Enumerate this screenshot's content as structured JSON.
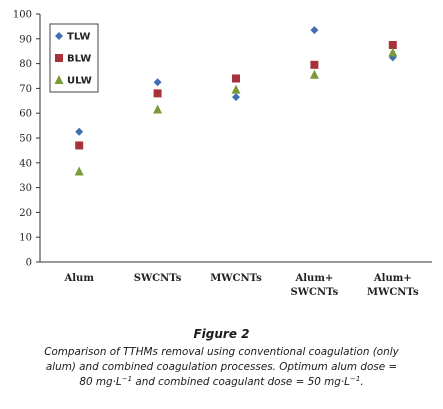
{
  "chart_data": {
    "type": "scatter",
    "title": "",
    "xlabel": "",
    "ylabel": "",
    "ylim": [
      0,
      100
    ],
    "yticks": [
      0,
      10,
      20,
      30,
      40,
      50,
      60,
      70,
      80,
      90,
      100
    ],
    "categories": [
      [
        "Alum"
      ],
      [
        "SWCNTs"
      ],
      [
        "MWCNTs"
      ],
      [
        "Alum+",
        "SWCNTs"
      ],
      [
        "Alum+",
        "MWCNTs"
      ]
    ],
    "series": [
      {
        "name": "TLW",
        "marker": "diamond",
        "color": "#3f6fb2",
        "values": [
          52.5,
          72.5,
          66.5,
          93.5,
          82.5
        ]
      },
      {
        "name": "BLW",
        "marker": "square",
        "color": "#a8323a",
        "values": [
          47,
          68,
          74,
          79.5,
          87.5
        ]
      },
      {
        "name": "ULW",
        "marker": "triangle",
        "color": "#7a9a3a",
        "values": [
          36.5,
          61.5,
          69.5,
          75.5,
          84.5
        ]
      }
    ],
    "legend": "top-left",
    "grid": false
  },
  "figure": {
    "title": "Figure 2",
    "caption_line1": "Comparison of TTHMs removal using conventional coagulation (only",
    "caption_line2": "alum) and combined coagulation processes. Optimum alum dose =",
    "caption_line3_a": "80 mg·L",
    "caption_line3_sup1": "−1",
    "caption_line3_b": " and combined coagulant dose = 50 mg·L",
    "caption_line3_sup2": "−1",
    "caption_line3_c": "."
  }
}
